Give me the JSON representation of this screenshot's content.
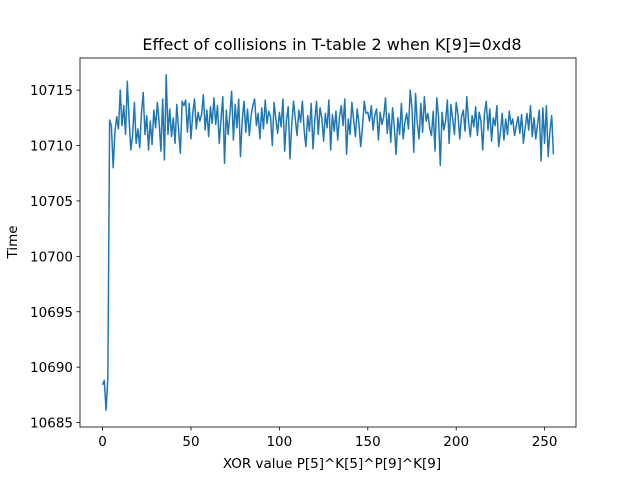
{
  "chart_data": {
    "type": "line",
    "title": "Effect of collisions in T-table 2 when K[9]=0xd8",
    "x_label": "XOR value P[5]^K[5]^P[9]^K[9]",
    "y_label": "Time",
    "color": "#1f77b4",
    "xlim": [
      -12.75,
      267.75
    ],
    "ylim": [
      10684.6,
      10717.9
    ],
    "xticks": [
      0,
      50,
      100,
      150,
      200,
      250
    ],
    "yticks": [
      10685,
      10690,
      10695,
      10700,
      10705,
      10710,
      10715
    ],
    "x": [
      0,
      1,
      2,
      3,
      4,
      5,
      6,
      7,
      8,
      9,
      10,
      11,
      12,
      13,
      14,
      15,
      16,
      17,
      18,
      19,
      20,
      21,
      22,
      23,
      24,
      25,
      26,
      27,
      28,
      29,
      30,
      31,
      32,
      33,
      34,
      35,
      36,
      37,
      38,
      39,
      40,
      41,
      42,
      43,
      44,
      45,
      46,
      47,
      48,
      49,
      50,
      51,
      52,
      53,
      54,
      55,
      56,
      57,
      58,
      59,
      60,
      61,
      62,
      63,
      64,
      65,
      66,
      67,
      68,
      69,
      70,
      71,
      72,
      73,
      74,
      75,
      76,
      77,
      78,
      79,
      80,
      81,
      82,
      83,
      84,
      85,
      86,
      87,
      88,
      89,
      90,
      91,
      92,
      93,
      94,
      95,
      96,
      97,
      98,
      99,
      100,
      101,
      102,
      103,
      104,
      105,
      106,
      107,
      108,
      109,
      110,
      111,
      112,
      113,
      114,
      115,
      116,
      117,
      118,
      119,
      120,
      121,
      122,
      123,
      124,
      125,
      126,
      127,
      128,
      129,
      130,
      131,
      132,
      133,
      134,
      135,
      136,
      137,
      138,
      139,
      140,
      141,
      142,
      143,
      144,
      145,
      146,
      147,
      148,
      149,
      150,
      151,
      152,
      153,
      154,
      155,
      156,
      157,
      158,
      159,
      160,
      161,
      162,
      163,
      164,
      165,
      166,
      167,
      168,
      169,
      170,
      171,
      172,
      173,
      174,
      175,
      176,
      177,
      178,
      179,
      180,
      181,
      182,
      183,
      184,
      185,
      186,
      187,
      188,
      189,
      190,
      191,
      192,
      193,
      194,
      195,
      196,
      197,
      198,
      199,
      200,
      201,
      202,
      203,
      204,
      205,
      206,
      207,
      208,
      209,
      210,
      211,
      212,
      213,
      214,
      215,
      216,
      217,
      218,
      219,
      220,
      221,
      222,
      223,
      224,
      225,
      226,
      227,
      228,
      229,
      230,
      231,
      232,
      233,
      234,
      235,
      236,
      237,
      238,
      239,
      240,
      241,
      242,
      243,
      244,
      245,
      246,
      247,
      248,
      249,
      250,
      251,
      252,
      253,
      254,
      255
    ],
    "values": [
      10688.4,
      10688.8,
      10686.1,
      10689.0,
      10712.3,
      10711.8,
      10708.0,
      10711.2,
      10712.6,
      10711.5,
      10715.0,
      10711.8,
      10713.6,
      10711.0,
      10715.8,
      10712.4,
      10709.6,
      10710.9,
      10713.9,
      10710.2,
      10711.5,
      10709.8,
      10712.9,
      10714.8,
      10711.0,
      10712.7,
      10709.6,
      10712.2,
      10710.1,
      10713.2,
      10711.6,
      10713.9,
      10712.1,
      10709.5,
      10714.2,
      10708.7,
      10716.4,
      10711.0,
      10713.3,
      10710.8,
      10712.5,
      10710.2,
      10713.7,
      10711.4,
      10709.3,
      10714.0,
      10713.6,
      10714.1,
      10711.2,
      10713.8,
      10710.6,
      10712.9,
      10714.2,
      10711.5,
      10713.0,
      10712.2,
      10712.8,
      10714.6,
      10711.4,
      10713.2,
      10710.8,
      10713.5,
      10712.0,
      10714.3,
      10711.9,
      10713.6,
      10710.2,
      10712.4,
      10714.4,
      10708.4,
      10713.2,
      10711.0,
      10712.8,
      10714.9,
      10710.5,
      10713.7,
      10711.6,
      10714.2,
      10709.0,
      10712.3,
      10714.0,
      10711.2,
      10713.3,
      10710.9,
      10712.7,
      10713.6,
      10714.2,
      10711.8,
      10712.9,
      10710.6,
      10713.4,
      10711.5,
      10714.1,
      10712.0,
      10713.1,
      10712.6,
      10710.0,
      10713.9,
      10712.4,
      10711.1,
      10713.0,
      10711.7,
      10714.2,
      10709.5,
      10712.3,
      10713.5,
      10708.8,
      10711.9,
      10714.0,
      10712.4,
      10710.9,
      10713.2,
      10712.1,
      10714.0,
      10711.4,
      10709.9,
      10712.7,
      10711.3,
      10713.8,
      10709.7,
      10712.2,
      10714.0,
      10711.0,
      10713.4,
      10712.5,
      10710.4,
      10712.9,
      10711.6,
      10714.1,
      10709.6,
      10712.8,
      10711.3,
      10713.1,
      10710.5,
      10712.6,
      10713.6,
      10711.8,
      10714.2,
      10709.2,
      10712.4,
      10711.0,
      10713.9,
      10712.3,
      10710.8,
      10713.3,
      10712.0,
      10709.9,
      10711.7,
      10714.0,
      10712.9,
      10713.0,
      10712.2,
      10713.6,
      10711.4,
      10712.8,
      10713.3,
      10710.5,
      10713.0,
      10711.9,
      10712.6,
      10714.3,
      10711.1,
      10712.9,
      10710.3,
      10713.4,
      10711.7,
      10709.2,
      10712.5,
      10711.0,
      10713.8,
      10710.6,
      10712.1,
      10712.9,
      10711.5,
      10715.0,
      10713.4,
      10709.4,
      10714.7,
      10712.0,
      10710.6,
      10713.8,
      10711.2,
      10714.4,
      10712.2,
      10712.9,
      10711.6,
      10710.9,
      10713.1,
      10709.5,
      10714.3,
      10712.6,
      10708.2,
      10713.0,
      10711.4,
      10712.2,
      10714.1,
      10710.2,
      10713.7,
      10712.4,
      10711.0,
      10713.9,
      10712.8,
      10710.6,
      10712.6,
      10713.2,
      10711.3,
      10714.4,
      10712.1,
      10710.8,
      10712.7,
      10711.7,
      10713.5,
      10710.9,
      10713.0,
      10712.2,
      10709.6,
      10712.9,
      10714.0,
      10711.4,
      10713.3,
      10710.4,
      10712.5,
      10711.8,
      10713.6,
      10709.9,
      10711.2,
      10712.9,
      10710.5,
      10712.4,
      10711.0,
      10713.1,
      10711.9,
      10712.4,
      10710.9,
      10711.8,
      10712.6,
      10711.1,
      10712.8,
      10710.2,
      10711.6,
      10712.9,
      10711.4,
      10713.6,
      10710.8,
      10712.5,
      10710.6,
      10711.9,
      10713.2,
      10708.6,
      10713.4,
      10710.2,
      10713.6,
      10709.0,
      10711.3,
      10712.7,
      10709.2
    ]
  }
}
